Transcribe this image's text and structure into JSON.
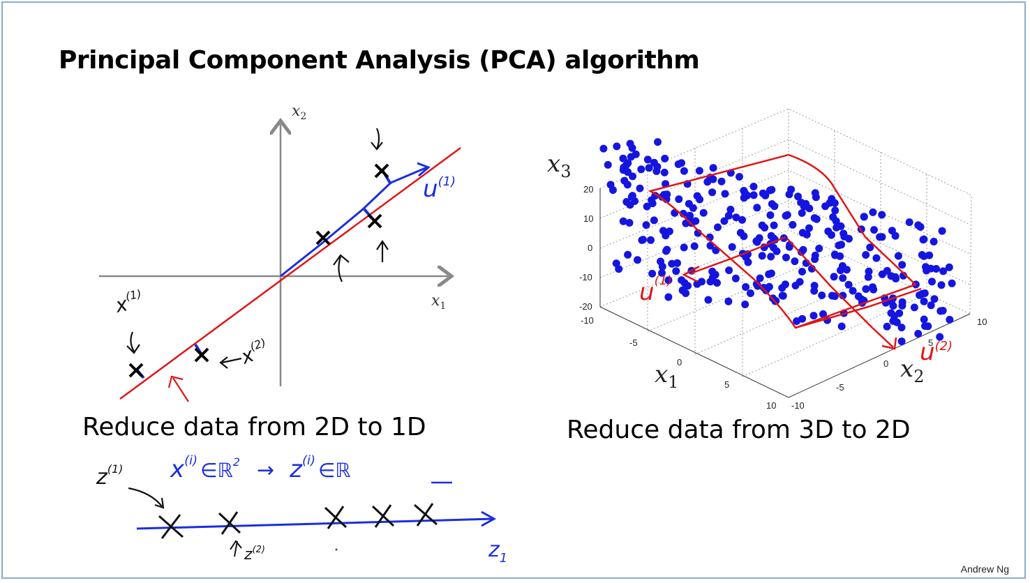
{
  "slide": {
    "title": "Principal Component Analysis (PCA) algorithm",
    "author": "Andrew Ng"
  },
  "left_figure": {
    "caption": "Reduce data from 2D to 1D",
    "x_axis_label": "x",
    "x_axis_sub": "1",
    "y_axis_label": "x",
    "y_axis_sub": "2",
    "annotations": {
      "u1": "u",
      "u1_sup": "(1)",
      "x1": "x",
      "x1_sup": "(1)",
      "x2": "x",
      "x2_sup": "(2)"
    }
  },
  "right_figure": {
    "caption": "Reduce data from 3D to 2D",
    "x1_label": "x",
    "x1_sub": "1",
    "x2_label": "x",
    "x2_sub": "2",
    "x3_label": "x",
    "x3_sub": "3",
    "z_ticks": [
      "20",
      "10",
      "0",
      "-10",
      "-20"
    ],
    "x1_ticks": [
      "-10",
      "-5",
      "0",
      "5",
      "10"
    ],
    "x2_ticks": [
      "-10",
      "-5",
      "0",
      "5",
      "10"
    ],
    "annotations": {
      "u1": "u",
      "u1_sup": "(1)",
      "u2": "u",
      "u2_sup": "(2)"
    },
    "point_color": "#1515e0",
    "plane_color": "#e01515"
  },
  "notes": {
    "z1_label": "z",
    "z1_sup": "(1)",
    "mapping_x": "x",
    "mapping_x_sup": "(i)",
    "mapping_in1": "∈ℝ",
    "mapping_dim": "2",
    "mapping_arrow": "→",
    "mapping_z": "z",
    "mapping_z_sup": "(i)",
    "mapping_in2": "∈ℝ",
    "z2_label": "z",
    "z2_sup": "(2)",
    "axis_label": "z",
    "axis_sub": "1"
  }
}
